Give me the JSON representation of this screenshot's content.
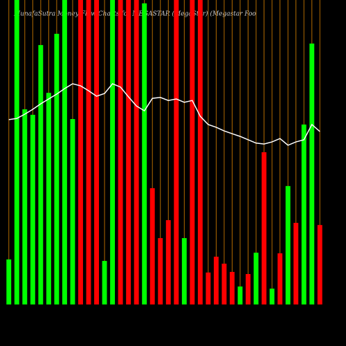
{
  "chart_data": {
    "type": "bar",
    "title": "MunafaSutra  Money Flow  Charts for MEGASTAR  (MegaStar)  (Megastar Foo",
    "categories": [
      null,
      null,
      null,
      null,
      null,
      null,
      null,
      null,
      null,
      null,
      null,
      null,
      null,
      null,
      null,
      null,
      null,
      null,
      null,
      null,
      null,
      null,
      null,
      null,
      null,
      null,
      null,
      null,
      null,
      null,
      null,
      null,
      null,
      null,
      null,
      null,
      null,
      null,
      null,
      null
    ],
    "values": [
      14.8,
      100,
      64.1,
      62.3,
      85.2,
      69.5,
      88.9,
      100,
      60.9,
      100,
      100,
      100,
      14.3,
      100,
      100,
      100,
      100,
      98.9,
      38.2,
      21.8,
      27.7,
      100,
      21.8,
      100,
      100,
      10.5,
      15.7,
      13.4,
      10.7,
      5.9,
      10,
      17,
      50,
      5.2,
      16.8,
      38.9,
      26.8,
      59.1,
      85.7,
      26.1
    ],
    "colors": [
      "#00ff00",
      "#00ff00",
      "#00ff00",
      "#00ff00",
      "#00ff00",
      "#00ff00",
      "#00ff00",
      "#00ff00",
      "#00ff00",
      "#ff0000",
      "#ff0000",
      "#ff0000",
      "#00ff00",
      "#00ff00",
      "#ff0000",
      "#ff0000",
      "#ff0000",
      "#00ff00",
      "#ff0000",
      "#ff0000",
      "#ff0000",
      "#ff0000",
      "#00ff00",
      "#ff0000",
      "#ff0000",
      "#ff0000",
      "#ff0000",
      "#ff0000",
      "#ff0000",
      "#00ff00",
      "#ff0000",
      "#00ff00",
      "#ff0000",
      "#00ff00",
      "#ff0000",
      "#00ff00",
      "#ff0000",
      "#00ff00",
      "#00ff00",
      "#ff0000"
    ],
    "line_values": [
      60.7,
      61.1,
      62.5,
      64.1,
      65.9,
      67.5,
      69.1,
      70.9,
      72.5,
      71.8,
      70.2,
      68.4,
      69.3,
      72.5,
      71.4,
      68.2,
      65.2,
      63.6,
      67.7,
      68,
      67,
      67.5,
      66.4,
      67,
      61.8,
      59.1,
      58.2,
      57,
      56.1,
      55.2,
      54.1,
      53,
      52.7,
      53.4,
      54.5,
      52.3,
      53.4,
      54.1,
      59.1,
      56.8
    ],
    "line_color": "#ffffff",
    "grid_color": "#b36b00",
    "ylim": [
      0,
      100
    ]
  }
}
